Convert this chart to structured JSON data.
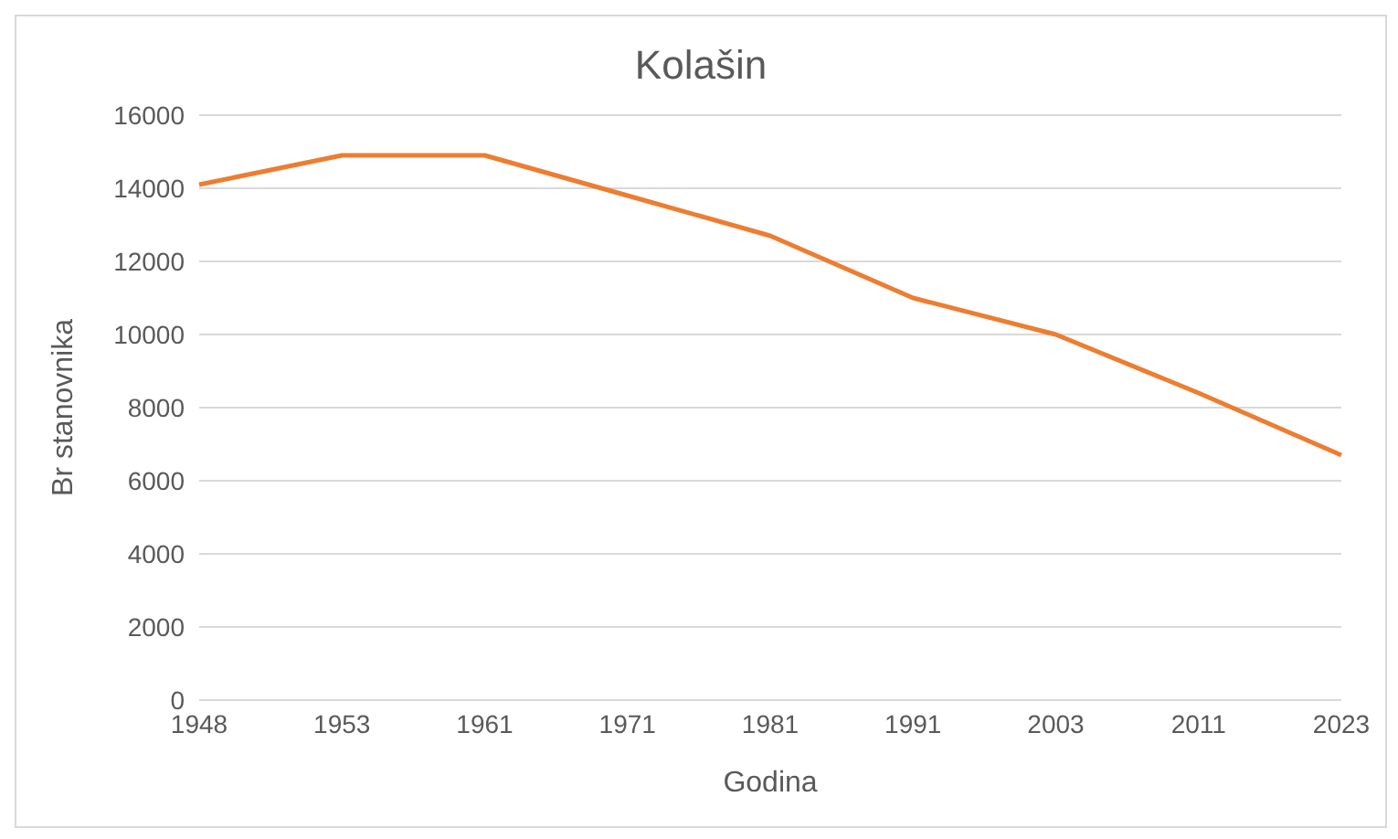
{
  "chart_data": {
    "type": "line",
    "title": "Kolašin",
    "xlabel": "Godina",
    "ylabel": "Br stanovnika",
    "categories": [
      "1948",
      "1953",
      "1961",
      "1971",
      "1981",
      "1991",
      "2003",
      "2011",
      "2023"
    ],
    "series": [
      {
        "color": "#ed7d31",
        "values": [
          14100,
          14900,
          14900,
          13800,
          12700,
          11000,
          10000,
          8400,
          6700
        ]
      }
    ],
    "ylim": [
      0,
      16000
    ],
    "yticks": [
      0,
      2000,
      4000,
      6000,
      8000,
      10000,
      12000,
      14000,
      16000
    ],
    "grid": "y",
    "legend": false,
    "marker": "none",
    "line_style": "solid"
  }
}
